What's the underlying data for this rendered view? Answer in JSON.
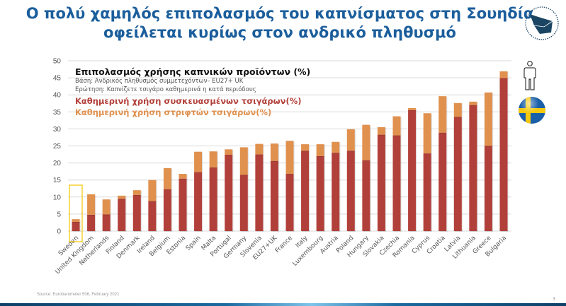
{
  "header": {
    "title_line1": "Ο πολύ χαμηλός επιπολασμός του καπνίσματος στη Σουηδία",
    "title_line2": "οφείλεται κυρίως στον ανδρικό πληθυσμό"
  },
  "icons": {
    "logo": "origami-bird-logo",
    "person": "male-person-icon",
    "flag": "sweden-flag-icon"
  },
  "footer": {
    "source": "Source: Eurobarometer 506, February 2021",
    "page": "3"
  },
  "colors": {
    "packaged": "#b2403a",
    "rolled": "#e0914e",
    "highlight": "#f5c400",
    "title": "#1b5e9c"
  },
  "chart_data": {
    "type": "bar",
    "stacked": true,
    "title": "Επιπολασμός χρήσης καπνικών προϊόντων (%)",
    "subtitle_base": "Βάση: Ανδρικός πληθυσμός συμμετεχόντων– EU27+ UK",
    "subtitle_question": "Ερώτηση: Καπνίζετε τσιγάρο καθημερινά η κατά περιόδους",
    "ylim": [
      0,
      50
    ],
    "yticks": [
      0,
      5,
      10,
      15,
      20,
      25,
      30,
      35,
      40,
      45,
      50
    ],
    "grid": true,
    "legend_position": "top-left",
    "highlighted_category": "Sweden",
    "categories": [
      "Sweden",
      "United Kingdom",
      "Netherlands",
      "Finland",
      "Denmark",
      "Ireland",
      "Belgium",
      "Estonia",
      "Spain",
      "Malta",
      "Portugal",
      "Germany",
      "Slovenia",
      "EU27+UK",
      "France",
      "Italy",
      "Luxembourg",
      "Austria",
      "Poland",
      "Hungary",
      "Slovakia",
      "Czechia",
      "Romania",
      "Cyprus",
      "Croatia",
      "Latvia",
      "Lithuania",
      "Greece",
      "Bulgaria"
    ],
    "series": [
      {
        "name": "Καθημερινή χρήση συσκευασμένων τσιγάρων(%)",
        "color": "#b2403a",
        "values": [
          2.7,
          4.8,
          4.9,
          9.5,
          10.6,
          8.8,
          12.3,
          15.4,
          17.3,
          18.7,
          22.4,
          16.5,
          22.5,
          20.6,
          16.8,
          23.6,
          22.0,
          23.0,
          23.6,
          20.8,
          28.3,
          28.1,
          35.5,
          22.8,
          28.9,
          33.5,
          37.0,
          25.0,
          44.9
        ]
      },
      {
        "name": "Καθημερινή χρήση στριφτών τσιγάρων(%)",
        "color": "#e0914e",
        "values": [
          0.8,
          6.0,
          4.4,
          0.9,
          1.4,
          6.2,
          6.2,
          1.4,
          6.0,
          4.7,
          1.6,
          8.1,
          3.1,
          5.1,
          9.7,
          1.9,
          3.5,
          3.2,
          6.3,
          10.4,
          2.2,
          5.6,
          0.6,
          11.8,
          10.7,
          4.1,
          1.0,
          15.7,
          2.0
        ]
      }
    ]
  }
}
